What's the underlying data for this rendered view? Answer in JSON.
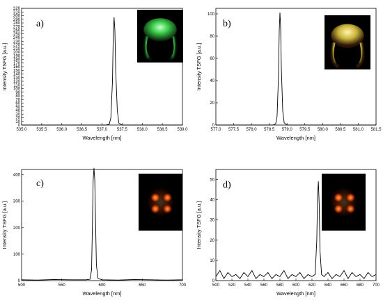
{
  "colors": {
    "line": "#000000",
    "axis": "#000000",
    "background": "#ffffff"
  },
  "chart_data": [
    {
      "type": "line",
      "panel": "a)",
      "xlabel": "Wavelength [nm]",
      "ylabel": "Intensity TSFG [a.u.]",
      "xlim": [
        535.0,
        539.0
      ],
      "ylim": [
        0,
        320
      ],
      "xticks": [
        "535.0",
        "535.5",
        "536.0",
        "536.5",
        "537.0",
        "537.5",
        "538.0",
        "538.5",
        "539.0"
      ],
      "yticks": [
        "0",
        "10",
        "20",
        "30",
        "40",
        "50",
        "60",
        "70",
        "80",
        "90",
        "100",
        "110",
        "120",
        "130",
        "140",
        "150",
        "160",
        "170",
        "180",
        "190",
        "200",
        "210",
        "220",
        "230",
        "240",
        "250",
        "260",
        "270",
        "280",
        "290",
        "300",
        "310",
        "320"
      ],
      "peak": {
        "x": 537.3,
        "y": 295
      },
      "inset": "green fluorescence image",
      "series": [
        {
          "x": [
            535.0,
            536.5,
            537.1,
            537.18,
            537.22,
            537.26,
            537.28,
            537.3,
            537.32,
            537.34,
            537.38,
            537.42,
            537.5,
            538.0,
            539.0
          ],
          "y": [
            0,
            0,
            0,
            2,
            20,
            120,
            250,
            295,
            260,
            150,
            40,
            5,
            0,
            0,
            0
          ]
        }
      ]
    },
    {
      "type": "line",
      "panel": "b)",
      "xlabel": "Wavelength [nm]",
      "ylabel": "Intensity TSFG [a.u.]",
      "xlim": [
        577.0,
        581.5
      ],
      "ylim": [
        0,
        105
      ],
      "xticks": [
        "577.0",
        "577.5",
        "578.0",
        "578.5",
        "579.0",
        "579.5",
        "580.0",
        "580.5",
        "581.0",
        "581.5"
      ],
      "yticks": [
        "0",
        "20",
        "40",
        "60",
        "80",
        "100"
      ],
      "peak": {
        "x": 578.8,
        "y": 101
      },
      "inset": "yellow fluorescence image",
      "series": [
        {
          "x": [
            577.0,
            578.0,
            578.6,
            578.68,
            578.72,
            578.76,
            578.78,
            578.8,
            578.82,
            578.84,
            578.88,
            578.92,
            579.0,
            580.0,
            581.5
          ],
          "y": [
            0,
            0,
            0,
            1,
            8,
            45,
            85,
            101,
            88,
            50,
            12,
            2,
            0,
            0,
            0
          ]
        }
      ]
    },
    {
      "type": "line",
      "panel": "c)",
      "xlabel": "Wavelength [nm]",
      "ylabel": "Intensity TSFG [a.u.]",
      "xlim": [
        500,
        700
      ],
      "ylim": [
        0,
        420
      ],
      "xticks": [
        "500",
        "550",
        "600",
        "650",
        "700"
      ],
      "yticks": [
        "0",
        "100",
        "200",
        "300",
        "400"
      ],
      "peak": {
        "x": 590,
        "y": 425
      },
      "inset": "red fluorescence image",
      "series": [
        {
          "x": [
            500,
            520,
            540,
            560,
            580,
            585,
            587,
            588,
            589,
            590,
            591,
            592,
            593,
            595,
            600,
            620,
            640,
            660,
            680,
            700
          ],
          "y": [
            3,
            2,
            4,
            3,
            3,
            5,
            40,
            200,
            380,
            425,
            380,
            220,
            60,
            8,
            3,
            2,
            4,
            3,
            2,
            3
          ]
        }
      ]
    },
    {
      "type": "line",
      "panel": "d)",
      "xlabel": "Wavelength [nm]",
      "ylabel": "Intensity TSFG [a.u.]",
      "xlim": [
        500,
        700
      ],
      "ylim": [
        0,
        55
      ],
      "xticks": [
        "500",
        "520",
        "540",
        "560",
        "580",
        "600",
        "620",
        "640",
        "660",
        "680",
        "700"
      ],
      "yticks": [
        "0",
        "10",
        "20",
        "30",
        "40",
        "50"
      ],
      "peak": {
        "x": 628,
        "y": 49
      },
      "inset": "red fluorescence image",
      "series": [
        {
          "x": [
            500,
            505,
            510,
            515,
            520,
            525,
            530,
            535,
            540,
            545,
            550,
            555,
            560,
            565,
            570,
            575,
            580,
            585,
            590,
            595,
            600,
            605,
            610,
            615,
            620,
            624,
            626,
            627,
            628,
            629,
            630,
            632,
            635,
            640,
            645,
            650,
            655,
            660,
            665,
            670,
            675,
            680,
            685,
            690,
            695,
            700
          ],
          "y": [
            2,
            5,
            1,
            4,
            2,
            3,
            1,
            4,
            2,
            5,
            1,
            3,
            2,
            4,
            1,
            3,
            2,
            5,
            1,
            3,
            2,
            4,
            1,
            3,
            2,
            3,
            20,
            42,
            49,
            38,
            15,
            3,
            2,
            4,
            1,
            3,
            2,
            5,
            1,
            4,
            2,
            3,
            1,
            4,
            2,
            3
          ]
        }
      ]
    }
  ]
}
